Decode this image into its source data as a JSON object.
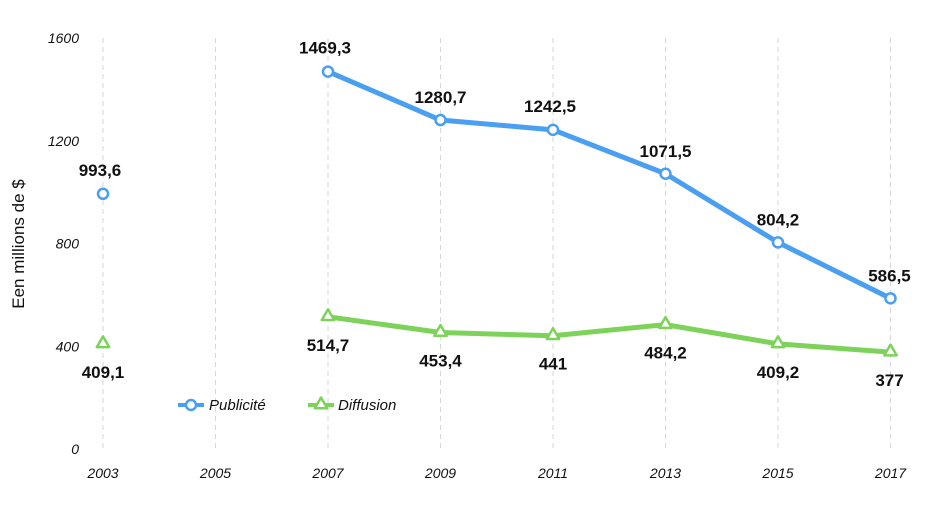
{
  "chart_data": {
    "type": "line",
    "ylabel": "Een millions de $",
    "xlabel": "",
    "title": "",
    "ylim": [
      0,
      1600
    ],
    "yticks": [
      0,
      400,
      800,
      1200,
      1600
    ],
    "ytick_labels": [
      "0",
      "400",
      "800",
      "1200",
      "1600"
    ],
    "categories": [
      "2003",
      "2005",
      "2007",
      "2009",
      "2011",
      "2013",
      "2015",
      "2017"
    ],
    "grid": "vertical dashed",
    "legend_position": "bottom-left",
    "series": [
      {
        "name": "Publicité",
        "color": "#4a9ff0",
        "marker": "circle",
        "values": [
          993.6,
          null,
          1469.3,
          1280.7,
          1242.5,
          1071.5,
          804.2,
          586.5
        ],
        "labels": [
          "993,6",
          "",
          "1469,3",
          "1280,7",
          "1242,5",
          "1071,5",
          "804,2",
          "586,5"
        ]
      },
      {
        "name": "Diffusion",
        "color": "#7dd35a",
        "marker": "triangle",
        "values": [
          409.1,
          null,
          514.7,
          453.4,
          441,
          484.2,
          409.2,
          377
        ],
        "labels": [
          "409,1",
          "",
          "514,7",
          "453,4",
          "441",
          "484,2",
          "409,2",
          "377"
        ]
      }
    ]
  }
}
